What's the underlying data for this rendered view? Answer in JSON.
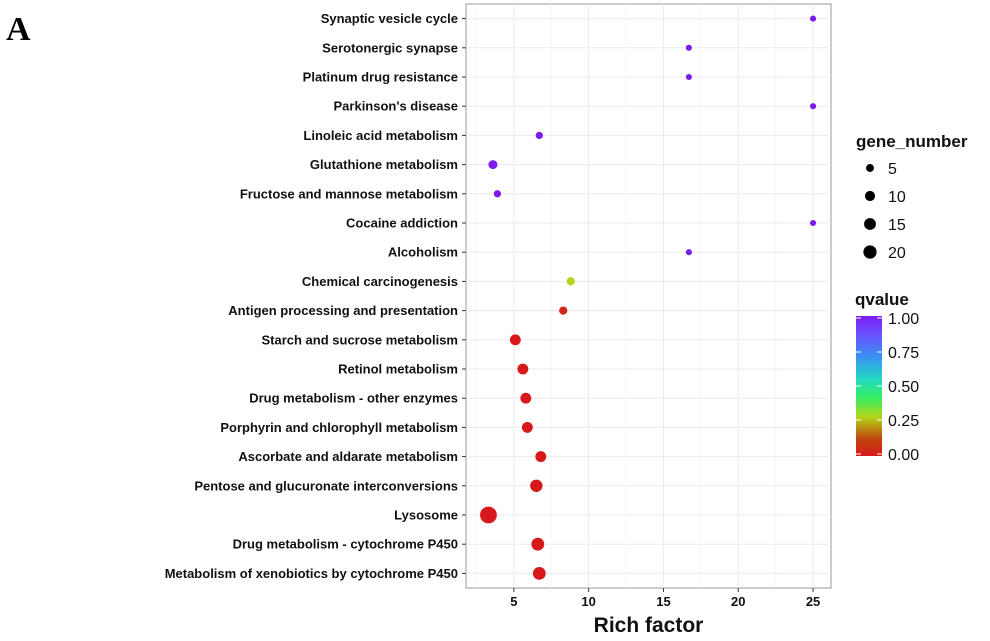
{
  "panel_label": "A",
  "chart_data": {
    "type": "scatter",
    "title": "",
    "xlabel": "Rich factor",
    "ylabel": "",
    "xlim": [
      1.8,
      26.2
    ],
    "xticks": [
      5,
      10,
      15,
      20,
      25
    ],
    "grid": true,
    "categories": [
      "Synaptic vesicle cycle",
      "Serotonergic synapse",
      "Platinum drug resistance",
      "Parkinson's disease",
      "Linoleic acid metabolism",
      "Glutathione metabolism",
      "Fructose and mannose metabolism",
      "Cocaine addiction",
      "Alcoholism",
      "Chemical carcinogenesis",
      "Antigen processing and presentation",
      "Starch and sucrose metabolism",
      "Retinol metabolism",
      "Drug metabolism - other enzymes",
      "Porphyrin and chlorophyll metabolism",
      "Ascorbate and aldarate metabolism",
      "Pentose and glucuronate interconversions",
      "Lysosome",
      "Drug metabolism - cytochrome P450",
      "Metabolism of xenobiotics by cytochrome P450"
    ],
    "points": [
      {
        "category": "Synaptic vesicle cycle",
        "rich_factor": 25.0,
        "gene_number": 1,
        "qvalue": 1.0
      },
      {
        "category": "Serotonergic synapse",
        "rich_factor": 16.7,
        "gene_number": 1,
        "qvalue": 1.0
      },
      {
        "category": "Platinum drug resistance",
        "rich_factor": 16.7,
        "gene_number": 1,
        "qvalue": 1.0
      },
      {
        "category": "Parkinson's disease",
        "rich_factor": 25.0,
        "gene_number": 1,
        "qvalue": 1.0
      },
      {
        "category": "Linoleic acid metabolism",
        "rich_factor": 6.7,
        "gene_number": 2,
        "qvalue": 1.0
      },
      {
        "category": "Glutathione metabolism",
        "rich_factor": 3.6,
        "gene_number": 4,
        "qvalue": 1.0
      },
      {
        "category": "Fructose and mannose metabolism",
        "rich_factor": 3.9,
        "gene_number": 2,
        "qvalue": 1.0
      },
      {
        "category": "Cocaine addiction",
        "rich_factor": 25.0,
        "gene_number": 1,
        "qvalue": 1.0
      },
      {
        "category": "Alcoholism",
        "rich_factor": 16.7,
        "gene_number": 1,
        "qvalue": 1.0
      },
      {
        "category": "Chemical carcinogenesis",
        "rich_factor": 8.8,
        "gene_number": 3,
        "qvalue": 0.28
      },
      {
        "category": "Antigen processing and presentation",
        "rich_factor": 8.3,
        "gene_number": 3,
        "qvalue": 0.04
      },
      {
        "category": "Starch and sucrose metabolism",
        "rich_factor": 5.1,
        "gene_number": 7,
        "qvalue": 0.0
      },
      {
        "category": "Retinol metabolism",
        "rich_factor": 5.6,
        "gene_number": 7,
        "qvalue": 0.0
      },
      {
        "category": "Drug metabolism - other enzymes",
        "rich_factor": 5.8,
        "gene_number": 7,
        "qvalue": 0.0
      },
      {
        "category": "Porphyrin and chlorophyll metabolism",
        "rich_factor": 5.9,
        "gene_number": 7,
        "qvalue": 0.0
      },
      {
        "category": "Ascorbate and aldarate metabolism",
        "rich_factor": 6.8,
        "gene_number": 7,
        "qvalue": 0.0
      },
      {
        "category": "Pentose and glucuronate interconversions",
        "rich_factor": 6.5,
        "gene_number": 10,
        "qvalue": 0.0
      },
      {
        "category": "Lysosome",
        "rich_factor": 3.3,
        "gene_number": 22,
        "qvalue": 0.0
      },
      {
        "category": "Drug metabolism - cytochrome P450",
        "rich_factor": 6.6,
        "gene_number": 11,
        "qvalue": 0.0
      },
      {
        "category": "Metabolism of xenobiotics by cytochrome P450",
        "rich_factor": 6.7,
        "gene_number": 11,
        "qvalue": 0.0
      }
    ],
    "legend_size": {
      "title": "gene_number",
      "entries": [
        {
          "label": "5",
          "value": 5
        },
        {
          "label": "10",
          "value": 10
        },
        {
          "label": "15",
          "value": 15
        },
        {
          "label": "20",
          "value": 20
        }
      ]
    },
    "legend_color": {
      "title": "qvalue",
      "labels": [
        "1.00",
        "0.75",
        "0.50",
        "0.25",
        "0.00"
      ],
      "stops": [
        {
          "value": 0.0,
          "color": "#d7191c"
        },
        {
          "value": 0.12,
          "color": "#c0440d"
        },
        {
          "value": 0.28,
          "color": "#b2d61a"
        },
        {
          "value": 0.42,
          "color": "#33ee66"
        },
        {
          "value": 0.55,
          "color": "#25d8c4"
        },
        {
          "value": 0.72,
          "color": "#3a8cf5"
        },
        {
          "value": 0.86,
          "color": "#6a55ff"
        },
        {
          "value": 1.0,
          "color": "#7a1cf0"
        }
      ]
    },
    "colors": {
      "panel_background": "#ffffff",
      "grid": "#ebebeb",
      "panel_border": "#7f7f7f"
    }
  }
}
